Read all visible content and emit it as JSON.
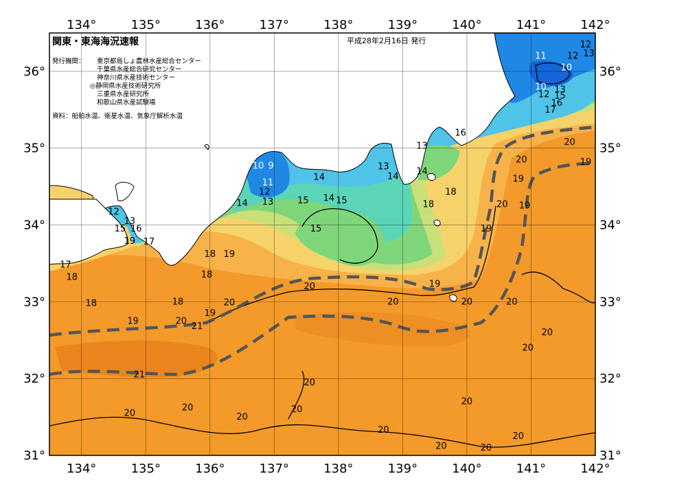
{
  "title": "関東・東海海況速報",
  "date": "平成28年2月16日 発行",
  "issuer_label": "発行機関：",
  "issuers": [
    "東京都島しょ農林水産総合センター",
    "千葉県水産総合研究センター",
    "神奈川県水産技術センター",
    "◎静岡県水産技術研究所",
    "三重県水産研究所",
    "和歌山県水産試験場"
  ],
  "source_text": "資料：船舶水温、衛星水温、気象庁解析水温",
  "lon_ticks": [
    "134°",
    "135°",
    "136°",
    "137°",
    "138°",
    "139°",
    "140°",
    "141°",
    "142°"
  ],
  "lat_ticks": [
    "36°",
    "35°",
    "34°",
    "33°",
    "32°",
    "31°"
  ],
  "lat_ticks_left": [
    "36°",
    "35°",
    "34°",
    "33°",
    "32°",
    "31°"
  ],
  "lon_range": [
    133.5,
    142
  ],
  "lat_range": [
    31,
    36.5
  ],
  "colors": {
    "warm": "#f39a2a",
    "warmer": "#e77f1c",
    "orange_light": "#f7b24a",
    "yellow": "#f6d36a",
    "yellow_green": "#c9e07a",
    "green": "#7fd67a",
    "teal": "#5bd5b8",
    "cyan": "#4fc3e8",
    "blue": "#1f88e5",
    "deep_blue": "#1565d8",
    "land": "#ffffff",
    "kuroshio_axis": "#555555"
  },
  "contour_labels": [
    {
      "t": "11",
      "lon": 141.15,
      "lat": 36.2
    },
    {
      "t": "12",
      "lon": 141.65,
      "lat": 36.2
    },
    {
      "t": "12",
      "lon": 141.85,
      "lat": 36.35
    },
    {
      "t": "13",
      "lon": 141.9,
      "lat": 36.23
    },
    {
      "t": "10",
      "lon": 141.55,
      "lat": 36.05
    },
    {
      "t": "10",
      "lon": 141.15,
      "lat": 35.8
    },
    {
      "t": "12",
      "lon": 141.2,
      "lat": 35.7
    },
    {
      "t": "13",
      "lon": 141.45,
      "lat": 35.76
    },
    {
      "t": "15",
      "lon": 141.45,
      "lat": 35.68
    },
    {
      "t": "16",
      "lon": 141.4,
      "lat": 35.59
    },
    {
      "t": "17",
      "lon": 141.3,
      "lat": 35.5
    },
    {
      "t": "16",
      "lon": 139.9,
      "lat": 35.2
    },
    {
      "t": "13",
      "lon": 139.3,
      "lat": 35.03
    },
    {
      "t": "10",
      "lon": 136.75,
      "lat": 34.77
    },
    {
      "t": "9",
      "lon": 136.95,
      "lat": 34.77
    },
    {
      "t": "11",
      "lon": 136.9,
      "lat": 34.55
    },
    {
      "t": "12",
      "lon": 136.85,
      "lat": 34.43
    },
    {
      "t": "13",
      "lon": 136.9,
      "lat": 34.3
    },
    {
      "t": "14",
      "lon": 136.5,
      "lat": 34.28
    },
    {
      "t": "14",
      "lon": 137.7,
      "lat": 34.62
    },
    {
      "t": "13",
      "lon": 138.7,
      "lat": 34.76
    },
    {
      "t": "14",
      "lon": 138.85,
      "lat": 34.63
    },
    {
      "t": "14",
      "lon": 139.3,
      "lat": 34.7
    },
    {
      "t": "15",
      "lon": 137.45,
      "lat": 34.32
    },
    {
      "t": "14",
      "lon": 137.85,
      "lat": 34.35
    },
    {
      "t": "15",
      "lon": 138.05,
      "lat": 34.32
    },
    {
      "t": "15",
      "lon": 137.65,
      "lat": 33.95
    },
    {
      "t": "18",
      "lon": 139.4,
      "lat": 34.27
    },
    {
      "t": "18",
      "lon": 139.75,
      "lat": 34.43
    },
    {
      "t": "20",
      "lon": 140.55,
      "lat": 34.27
    },
    {
      "t": "19",
      "lon": 140.9,
      "lat": 34.25
    },
    {
      "t": "19",
      "lon": 140.3,
      "lat": 33.95
    },
    {
      "t": "20",
      "lon": 140.85,
      "lat": 34.85
    },
    {
      "t": "19",
      "lon": 140.8,
      "lat": 34.6
    },
    {
      "t": "20",
      "lon": 141.6,
      "lat": 35.08
    },
    {
      "t": "19",
      "lon": 141.85,
      "lat": 34.82
    },
    {
      "t": "12",
      "lon": 134.5,
      "lat": 34.17
    },
    {
      "t": "13",
      "lon": 134.75,
      "lat": 34.05
    },
    {
      "t": "15",
      "lon": 134.6,
      "lat": 33.95
    },
    {
      "t": "16",
      "lon": 134.85,
      "lat": 33.95
    },
    {
      "t": "19",
      "lon": 134.75,
      "lat": 33.79
    },
    {
      "t": "17",
      "lon": 135.05,
      "lat": 33.78
    },
    {
      "t": "17",
      "lon": 133.75,
      "lat": 33.48
    },
    {
      "t": "18",
      "lon": 133.85,
      "lat": 33.32
    },
    {
      "t": "18",
      "lon": 136.0,
      "lat": 33.62
    },
    {
      "t": "19",
      "lon": 136.3,
      "lat": 33.62
    },
    {
      "t": "18",
      "lon": 135.95,
      "lat": 33.35
    },
    {
      "t": "18",
      "lon": 134.15,
      "lat": 32.98
    },
    {
      "t": "18",
      "lon": 135.5,
      "lat": 33.0
    },
    {
      "t": "20",
      "lon": 137.55,
      "lat": 33.2
    },
    {
      "t": "20",
      "lon": 138.85,
      "lat": 33.0
    },
    {
      "t": "19",
      "lon": 139.5,
      "lat": 33.23
    },
    {
      "t": "20",
      "lon": 140.0,
      "lat": 33.0
    },
    {
      "t": "20",
      "lon": 140.7,
      "lat": 33.0
    },
    {
      "t": "20",
      "lon": 136.3,
      "lat": 32.99
    },
    {
      "t": "19",
      "lon": 136.0,
      "lat": 32.85
    },
    {
      "t": "19",
      "lon": 134.8,
      "lat": 32.75
    },
    {
      "t": "20",
      "lon": 135.55,
      "lat": 32.75
    },
    {
      "t": "21",
      "lon": 135.8,
      "lat": 32.68
    },
    {
      "t": "21",
      "lon": 134.9,
      "lat": 32.05
    },
    {
      "t": "20",
      "lon": 141.25,
      "lat": 32.6
    },
    {
      "t": "20",
      "lon": 140.95,
      "lat": 32.4
    },
    {
      "t": "20",
      "lon": 137.55,
      "lat": 31.95
    },
    {
      "t": "20",
      "lon": 137.35,
      "lat": 31.6
    },
    {
      "t": "20",
      "lon": 136.5,
      "lat": 31.5
    },
    {
      "t": "20",
      "lon": 134.75,
      "lat": 31.55
    },
    {
      "t": "20",
      "lon": 135.65,
      "lat": 31.62
    },
    {
      "t": "20",
      "lon": 138.7,
      "lat": 31.33
    },
    {
      "t": "20",
      "lon": 140.0,
      "lat": 31.7
    },
    {
      "t": "20",
      "lon": 140.8,
      "lat": 31.25
    },
    {
      "t": "20",
      "lon": 139.6,
      "lat": 31.12
    },
    {
      "t": "20",
      "lon": 140.3,
      "lat": 31.1
    }
  ]
}
